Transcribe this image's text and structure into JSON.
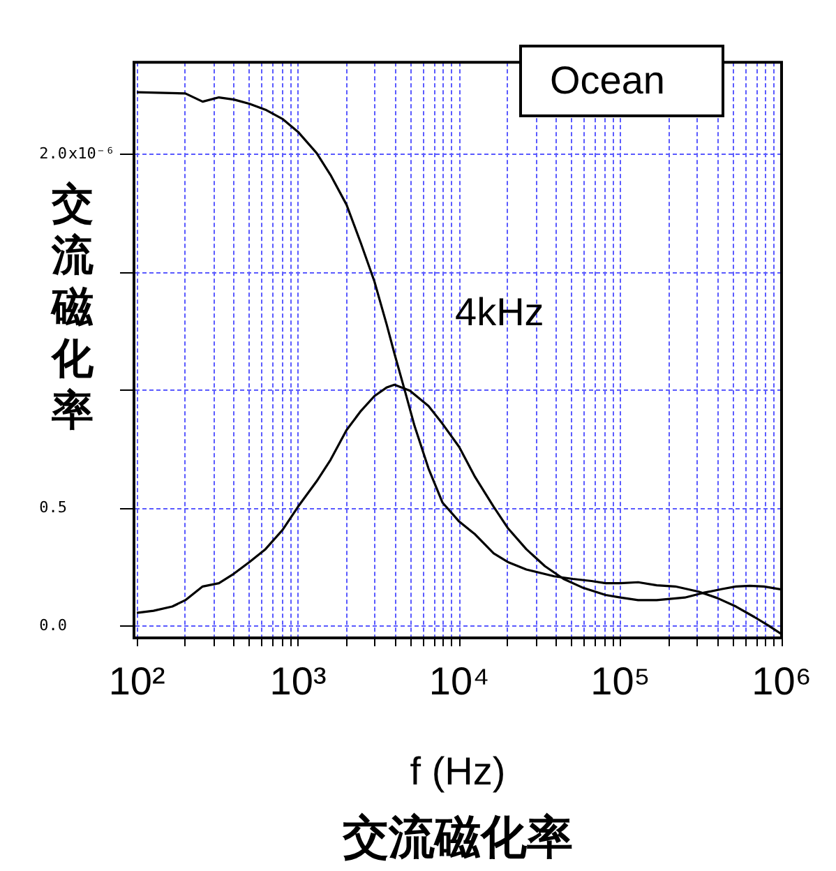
{
  "chart_data": {
    "type": "line",
    "ylabel": "交流磁化率",
    "xlabel": "f (Hz)",
    "log": "x",
    "annotations": [
      "Ocean",
      "4kHz",
      "交流磁化率",
      "x10⁻⁶"
    ],
    "xlim": [
      96,
      1000000
    ],
    "xticks": [
      {
        "value": 100,
        "label": "10²"
      },
      {
        "value": 200,
        "label": null
      },
      {
        "value": 300,
        "label": null
      },
      {
        "value": 400,
        "label": null
      },
      {
        "value": 500,
        "label": null
      },
      {
        "value": 600,
        "label": null
      },
      {
        "value": 700,
        "label": null
      },
      {
        "value": 800,
        "label": null
      },
      {
        "value": 900,
        "label": null
      },
      {
        "value": 1000,
        "label": "10³"
      },
      {
        "value": 2000,
        "label": null
      },
      {
        "value": 3000,
        "label": null
      },
      {
        "value": 4000,
        "label": null
      },
      {
        "value": 5000,
        "label": null
      },
      {
        "value": 6000,
        "label": null
      },
      {
        "value": 7000,
        "label": null
      },
      {
        "value": 8000,
        "label": null
      },
      {
        "value": 9000,
        "label": null
      },
      {
        "value": 10000,
        "label": "10⁴"
      },
      {
        "value": 20000,
        "label": null
      },
      {
        "value": 30000,
        "label": null
      },
      {
        "value": 40000,
        "label": null
      },
      {
        "value": 50000,
        "label": null
      },
      {
        "value": 60000,
        "label": null
      },
      {
        "value": 70000,
        "label": null
      },
      {
        "value": 80000,
        "label": null
      },
      {
        "value": 90000,
        "label": null
      },
      {
        "value": 100000,
        "label": "10⁵"
      },
      {
        "value": 200000,
        "label": null
      },
      {
        "value": 300000,
        "label": null
      },
      {
        "value": 400000,
        "label": null
      },
      {
        "value": 500000,
        "label": null
      },
      {
        "value": 600000,
        "label": null
      },
      {
        "value": 700000,
        "label": null
      },
      {
        "value": 800000,
        "label": null
      },
      {
        "value": 900000,
        "label": null
      },
      {
        "value": 1000000,
        "label": "10⁶"
      }
    ],
    "ylim": [
      -0.05,
      2.39
    ],
    "yticks": [
      {
        "value": 0,
        "label": "0.0"
      },
      {
        "value": 0.5,
        "label": "0.5"
      },
      {
        "value": 1,
        "label": null
      },
      {
        "value": 1.5,
        "label": null
      },
      {
        "value": 2,
        "label": "2.0"
      }
    ],
    "grid": true,
    "legend": false,
    "marker": "none",
    "line_style": "solid",
    "series": [
      {
        "color": "#000000",
        "x": [
          100,
          200,
          256,
          323,
          400,
          500,
          628,
          800,
          1000,
          1305,
          1592,
          2000,
          2455,
          2978,
          3540,
          3965,
          4620,
          5280,
          6450,
          7870,
          10000,
          12540,
          16360,
          20000,
          26080,
          38900,
          50700,
          66200,
          80900,
          100000,
          128800,
          168000,
          219000,
          306000,
          399000,
          521000,
          680000,
          830000,
          1000000
        ],
        "values": [
          2.263,
          2.258,
          2.223,
          2.241,
          2.232,
          2.214,
          2.189,
          2.15,
          2.095,
          2.005,
          1.912,
          1.786,
          1.623,
          1.461,
          1.281,
          1.155,
          0.993,
          0.849,
          0.668,
          0.524,
          0.443,
          0.389,
          0.308,
          0.272,
          0.24,
          0.211,
          0.2,
          0.191,
          0.182,
          0.182,
          0.186,
          0.173,
          0.168,
          0.146,
          0.119,
          0.083,
          0.038,
          0.002,
          -0.034
        ]
      },
      {
        "color": "#000000",
        "x": [
          100,
          127,
          166,
          200,
          256,
          323,
          400,
          500,
          628,
          800,
          1000,
          1305,
          1592,
          2000,
          2455,
          2978,
          3540,
          3965,
          4940,
          6450,
          7870,
          10000,
          12540,
          16360,
          20000,
          26080,
          34040,
          44400,
          57900,
          80900,
          100000,
          128800,
          168000,
          251000,
          327000,
          427000,
          521000,
          636000,
          777000,
          1000000
        ],
        "values": [
          0.056,
          0.065,
          0.083,
          0.11,
          0.168,
          0.182,
          0.222,
          0.272,
          0.326,
          0.407,
          0.506,
          0.614,
          0.705,
          0.831,
          0.912,
          0.975,
          1.011,
          1.023,
          0.998,
          0.933,
          0.858,
          0.759,
          0.632,
          0.506,
          0.416,
          0.326,
          0.254,
          0.2,
          0.164,
          0.132,
          0.121,
          0.11,
          0.11,
          0.121,
          0.141,
          0.157,
          0.168,
          0.171,
          0.168,
          0.155
        ]
      }
    ]
  }
}
